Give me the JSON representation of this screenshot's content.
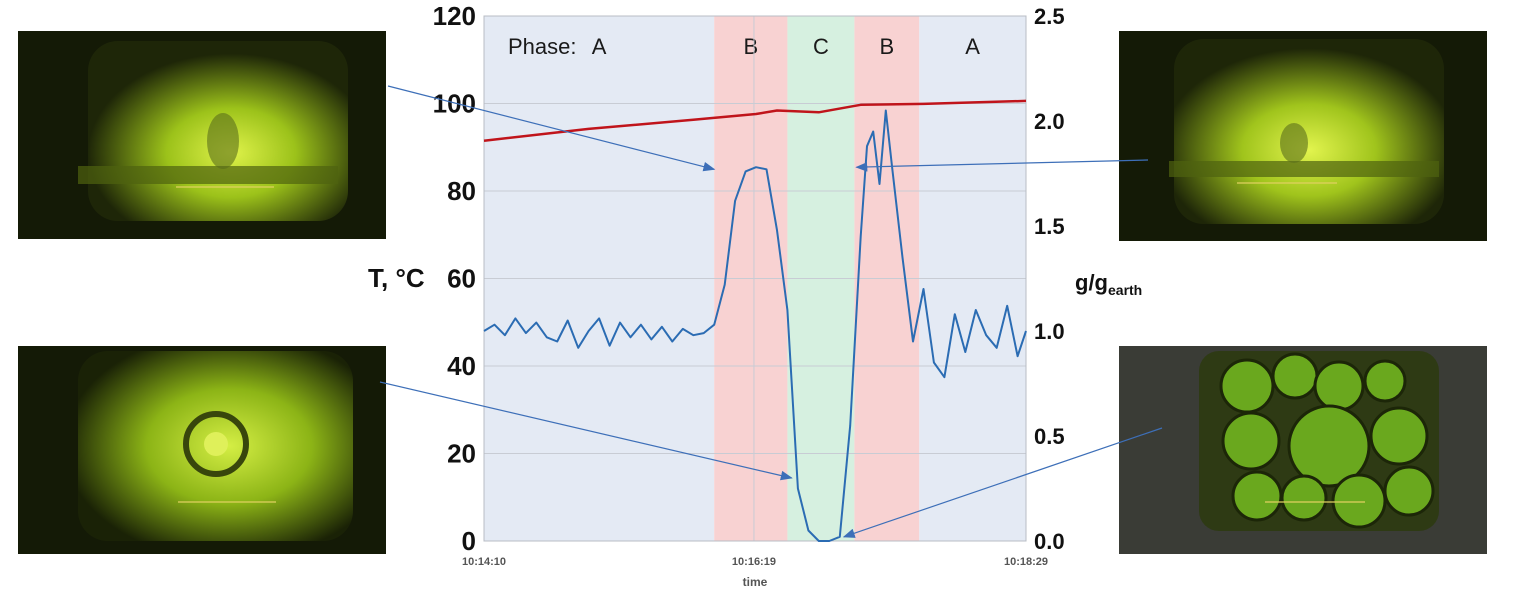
{
  "photos": [
    {
      "name": "photo-top-left",
      "tone": "glow"
    },
    {
      "name": "photo-top-right",
      "tone": "glow"
    },
    {
      "name": "photo-bottom-left",
      "tone": "glow-dim"
    },
    {
      "name": "photo-bottom-right",
      "tone": "bubbles"
    }
  ],
  "chart_data": {
    "type": "line",
    "title": "",
    "xlabel": "time",
    "ylabel_left": "T, °C",
    "ylabel_right_main": "g/g",
    "ylabel_right_sub": "earth",
    "x_ticks": [
      "10:14:10",
      "10:16:19",
      "10:18:29"
    ],
    "x_range_seconds_label": [
      "10:14:10",
      "10:18:29"
    ],
    "ylim_left": [
      0,
      120
    ],
    "yticks_left": [
      "0",
      "20",
      "40",
      "60",
      "80",
      "100",
      "120"
    ],
    "ylim_right": [
      0,
      2.5
    ],
    "yticks_right": [
      "0.0",
      "0.5",
      "1.0",
      "1.5",
      "2.0",
      "2.5"
    ],
    "grid": true,
    "phase_label_prefix": "Phase:",
    "phases": [
      {
        "label": "A",
        "start": "10:14:10",
        "end": "10:16:00",
        "color": "#e4eaf4"
      },
      {
        "label": "B",
        "start": "10:16:00",
        "end": "10:16:35",
        "color": "#f8d2d2"
      },
      {
        "label": "C",
        "start": "10:16:35",
        "end": "10:17:07",
        "color": "#d6f0e0"
      },
      {
        "label": "B",
        "start": "10:17:07",
        "end": "10:17:38",
        "color": "#f8d2d2"
      },
      {
        "label": "A",
        "start": "10:17:38",
        "end": "10:18:29",
        "color": "#e4eaf4"
      }
    ],
    "series": [
      {
        "name": "",
        "axis": "left",
        "color": "#c0141b",
        "x": [
          "10:14:10",
          "10:15:00",
          "10:15:50",
          "10:16:20",
          "10:16:30",
          "10:16:50",
          "10:17:10",
          "10:17:40",
          "10:18:29"
        ],
        "y": [
          91.5,
          94.2,
          96.3,
          97.6,
          98.4,
          98.0,
          99.7,
          99.9,
          100.6
        ]
      },
      {
        "name": "",
        "axis": "right",
        "color": "#2b6cb3",
        "x": [
          "10:14:10",
          "10:14:15",
          "10:14:20",
          "10:14:25",
          "10:14:30",
          "10:14:35",
          "10:14:40",
          "10:14:45",
          "10:14:50",
          "10:14:55",
          "10:15:00",
          "10:15:05",
          "10:15:10",
          "10:15:15",
          "10:15:20",
          "10:15:25",
          "10:15:30",
          "10:15:35",
          "10:15:40",
          "10:15:45",
          "10:15:50",
          "10:15:55",
          "10:16:00",
          "10:16:05",
          "10:16:10",
          "10:16:15",
          "10:16:20",
          "10:16:25",
          "10:16:30",
          "10:16:35",
          "10:16:40",
          "10:16:45",
          "10:16:50",
          "10:16:55",
          "10:17:00",
          "10:17:05",
          "10:17:10",
          "10:17:13",
          "10:17:16",
          "10:17:19",
          "10:17:22",
          "10:17:25",
          "10:17:30",
          "10:17:35",
          "10:17:40",
          "10:17:45",
          "10:17:50",
          "10:17:55",
          "10:18:00",
          "10:18:05",
          "10:18:10",
          "10:18:15",
          "10:18:20",
          "10:18:25",
          "10:18:29"
        ],
        "y": [
          1.0,
          1.03,
          0.98,
          1.06,
          0.99,
          1.04,
          0.97,
          0.95,
          1.05,
          0.92,
          1.0,
          1.06,
          0.93,
          1.04,
          0.97,
          1.03,
          0.96,
          1.02,
          0.95,
          1.01,
          0.98,
          0.99,
          1.03,
          1.22,
          1.62,
          1.76,
          1.78,
          1.77,
          1.48,
          1.1,
          0.25,
          0.05,
          0.0,
          0.0,
          0.02,
          0.55,
          1.45,
          1.88,
          1.95,
          1.7,
          2.05,
          1.78,
          1.35,
          0.95,
          1.2,
          0.85,
          0.78,
          1.08,
          0.9,
          1.1,
          0.98,
          0.92,
          1.12,
          0.88,
          1.0
        ]
      }
    ],
    "annotation_arrows": [
      {
        "from": "photo-top-left",
        "to_time": "10:16:00",
        "to_series": "g",
        "to_value": 1.77
      },
      {
        "from": "photo-top-right",
        "to_time": "10:17:08",
        "to_series": "g",
        "to_value": 1.78
      },
      {
        "from": "photo-bottom-left",
        "to_time": "10:16:37",
        "to_series": "g",
        "to_value": 0.3
      },
      {
        "from": "photo-bottom-right",
        "to_time": "10:17:02",
        "to_series": "g",
        "to_value": 0.02
      }
    ]
  }
}
